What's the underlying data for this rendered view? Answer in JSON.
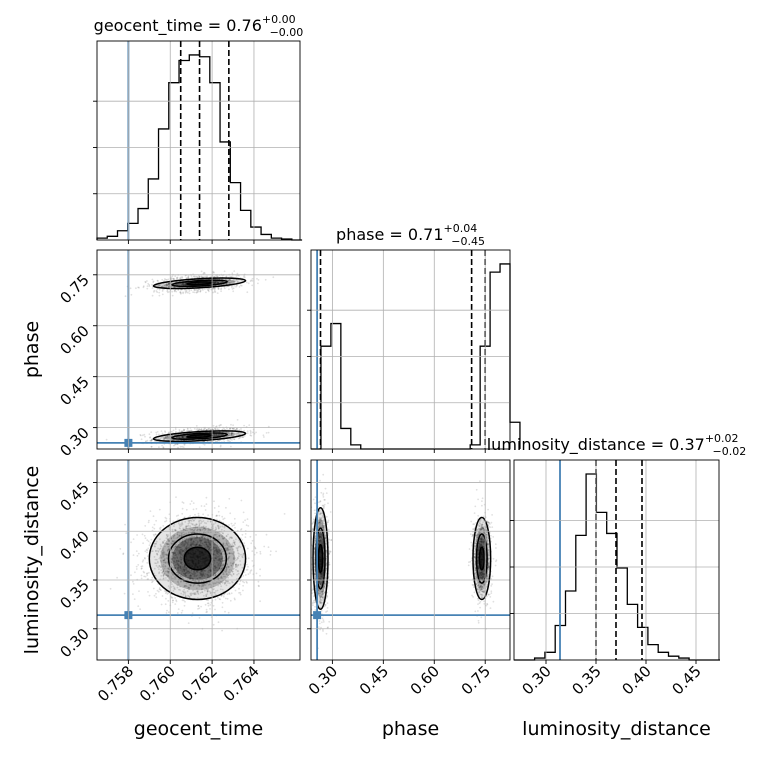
{
  "chart_data": {
    "type": "scatter",
    "subtype": "corner-plot",
    "grid": true,
    "truth_color": "#4682b4",
    "parameters": [
      {
        "id": "geocent_time",
        "label": "geocent_time",
        "title_prefix": "geocent_time = 0.76",
        "title_sup": "+0.00",
        "title_sub": "−0.00",
        "range": [
          0.7565,
          0.7662
        ],
        "ticks": [
          0.758,
          0.76,
          0.762,
          0.764
        ],
        "tick_labels": [
          "0.758",
          "0.760",
          "0.762",
          "0.764"
        ],
        "truth": 0.758,
        "quantiles": [
          0.7605,
          0.7614,
          0.7628
        ],
        "hist_edges_start": 0.7565,
        "hist_bin_width": 0.00049,
        "hist_counts": [
          0.01,
          0.02,
          0.05,
          0.09,
          0.17,
          0.33,
          0.6,
          0.85,
          0.97,
          1.0,
          0.99,
          0.85,
          0.53,
          0.31,
          0.16,
          0.07,
          0.03,
          0.01,
          0.005,
          0.0
        ]
      },
      {
        "id": "phase",
        "label": "phase",
        "title_prefix": "phase = 0.71",
        "title_sup": "+0.04",
        "title_sub": "−0.45",
        "range": [
          0.237,
          0.823
        ],
        "ticks": [
          0.3,
          0.45,
          0.6,
          0.75
        ],
        "tick_labels": [
          "0.30",
          "0.45",
          "0.60",
          "0.75"
        ],
        "truth": 0.255,
        "quantiles": [
          0.265,
          0.71,
          0.75
        ],
        "hist_edges_start": 0.237,
        "hist_bin_width": 0.0293,
        "hist_counts": [
          0.0,
          0.5,
          0.61,
          0.1,
          0.02,
          0.0,
          0.0,
          0.0,
          0.0,
          0.0,
          0.0,
          0.0,
          0.0,
          0.0,
          0.0,
          0.0,
          0.02,
          0.5,
          0.86,
          0.9,
          0.13
        ]
      },
      {
        "id": "luminosity_distance",
        "label": "luminosity_distance",
        "title_prefix": "luminosity_distance = 0.37",
        "title_sup": "+0.02",
        "title_sub": "−0.02",
        "range": [
          0.268,
          0.473
        ],
        "ticks": [
          0.3,
          0.35,
          0.4,
          0.45
        ],
        "tick_labels": [
          "0.30",
          "0.35",
          "0.40",
          "0.45"
        ],
        "truth": 0.314,
        "quantiles": [
          0.35,
          0.37,
          0.396
        ],
        "hist_edges_start": 0.268,
        "hist_bin_width": 0.0103,
        "hist_counts": [
          0.0,
          0.0,
          0.01,
          0.04,
          0.18,
          0.36,
          0.65,
          0.97,
          0.77,
          0.66,
          0.48,
          0.29,
          0.17,
          0.08,
          0.04,
          0.02,
          0.01,
          0.0,
          0.0,
          0.0
        ]
      }
    ],
    "pairs": [
      {
        "x": "geocent_time",
        "y": "phase",
        "blobs": [
          {
            "cx": 0.7614,
            "cy": 0.275,
            "sx": 0.0011,
            "sy": 0.012,
            "slope": 3.6,
            "n": 900
          },
          {
            "cx": 0.7614,
            "cy": 0.725,
            "sx": 0.0011,
            "sy": 0.012,
            "slope": 3.6,
            "n": 900
          }
        ]
      },
      {
        "x": "geocent_time",
        "y": "luminosity_distance",
        "blobs": [
          {
            "cx": 0.7613,
            "cy": 0.372,
            "sx": 0.00115,
            "sy": 0.021,
            "slope": 0,
            "n": 2400
          }
        ]
      },
      {
        "x": "phase",
        "y": "luminosity_distance",
        "blobs": [
          {
            "cx": 0.265,
            "cy": 0.372,
            "sx": 0.011,
            "sy": 0.026,
            "slope": 0,
            "n": 1100
          },
          {
            "cx": 0.74,
            "cy": 0.372,
            "sx": 0.013,
            "sy": 0.021,
            "slope": 0,
            "n": 1100
          }
        ]
      }
    ]
  }
}
